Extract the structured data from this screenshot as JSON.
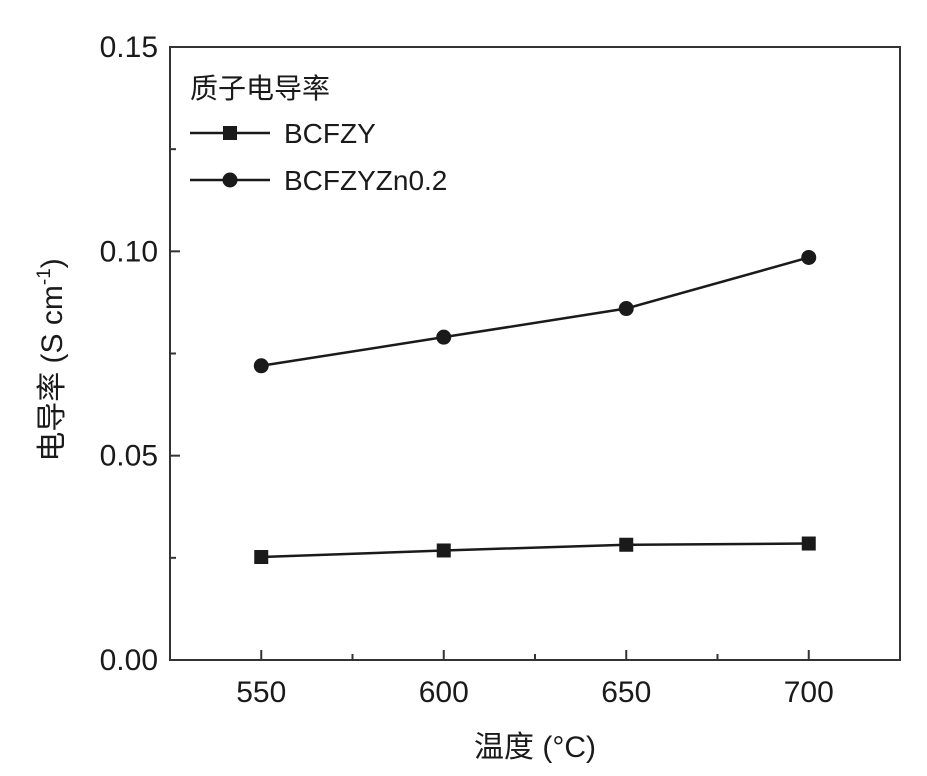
{
  "chart_data": {
    "type": "line",
    "xlabel": "温度 (°C)",
    "ylabel_main": "电导率 (S cm",
    "ylabel_sup": "-1",
    "ylabel_close": ")",
    "xlim": [
      525,
      725
    ],
    "ylim": [
      0,
      0.15
    ],
    "x_ticks": [
      550,
      600,
      650,
      700
    ],
    "x_tick_labels": [
      "550",
      "600",
      "650",
      "700"
    ],
    "y_ticks": [
      0,
      0.05,
      0.1,
      0.15
    ],
    "y_tick_labels": [
      "0.00",
      "0.05",
      "0.10",
      "0.15"
    ],
    "grid": false,
    "legend_title": "质子电导率",
    "legend_position": "top-left",
    "x": [
      550,
      600,
      650,
      700
    ],
    "series": [
      {
        "name": "BCFZY",
        "marker": "square",
        "values": [
          0.0252,
          0.0268,
          0.0282,
          0.0285
        ]
      },
      {
        "name": "BCFZYZn0.2",
        "marker": "circle",
        "values": [
          0.072,
          0.079,
          0.086,
          0.0985
        ]
      }
    ],
    "colors": {
      "line": "#1a1a1a",
      "axis": "#333333"
    }
  }
}
